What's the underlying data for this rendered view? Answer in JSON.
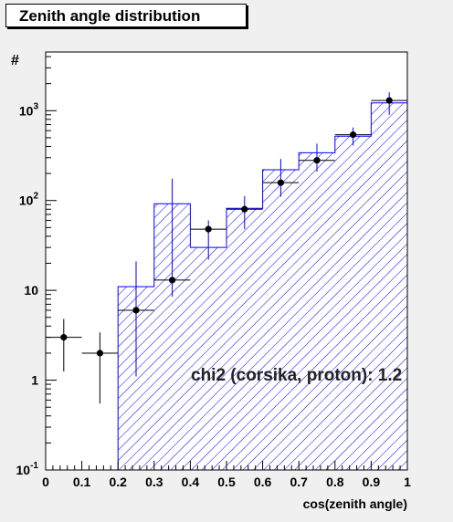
{
  "chart_data": {
    "type": "bar",
    "title": "Zenith angle distribution",
    "xlabel": "cos(zenith angle)",
    "ylabel": "#",
    "xlim": [
      0,
      1
    ],
    "ylim": [
      0.1,
      4500
    ],
    "yscale": "log",
    "grid": false,
    "x_ticks": [
      "0",
      "0.1",
      "0.2",
      "0.3",
      "0.4",
      "0.5",
      "0.6",
      "0.7",
      "0.8",
      "0.9",
      "1"
    ],
    "y_ticks": [
      {
        "value": 0.1,
        "base": "10",
        "exp": "-1"
      },
      {
        "value": 1,
        "base": "1",
        "exp": ""
      },
      {
        "value": 10,
        "base": "10",
        "exp": ""
      },
      {
        "value": 100,
        "base": "10",
        "exp": "2"
      },
      {
        "value": 1000,
        "base": "10",
        "exp": "3"
      }
    ],
    "bin_edges": [
      0,
      0.1,
      0.2,
      0.3,
      0.4,
      0.5,
      0.6,
      0.7,
      0.8,
      0.9,
      1.0
    ],
    "series": [
      {
        "style": "histogram-hatched",
        "values": [
          0,
          0,
          11,
          92,
          30,
          82,
          220,
          340,
          520,
          1220
        ]
      },
      {
        "style": "points-with-errors",
        "x": [
          0.05,
          0.15,
          0.25,
          0.35,
          0.45,
          0.55,
          0.65,
          0.75,
          0.85,
          0.95
        ],
        "y": [
          3,
          2,
          6,
          13,
          48,
          80,
          158,
          280,
          540,
          1300
        ],
        "y_low": [
          1.25,
          0.55,
          1.1,
          8.5,
          22,
          48,
          110,
          210,
          410,
          900
        ],
        "y_high": [
          4.8,
          3.4,
          21,
          175,
          60,
          112,
          290,
          430,
          650,
          1600
        ]
      }
    ],
    "annotations": [
      "chi2 (corsika, proton): 1.2"
    ],
    "colors": {
      "histogram": "#0000ff",
      "points": "#000000",
      "errors_points_0_1": "#000000",
      "errors": "#0000ff",
      "frame": "#000000"
    }
  }
}
